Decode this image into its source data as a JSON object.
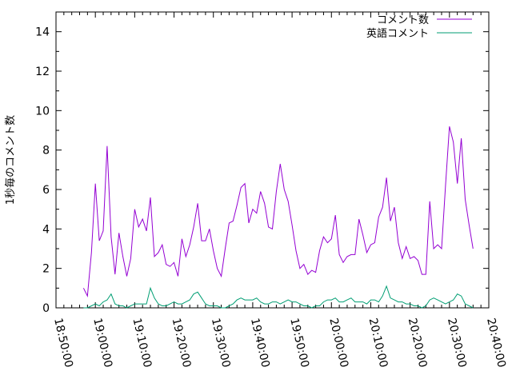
{
  "chart_data": {
    "type": "line",
    "xlabel": "",
    "ylabel": "1秒毎のコメント数",
    "xlim": [
      "18:50:00",
      "20:40:00"
    ],
    "ylim": [
      0,
      15
    ],
    "yticks": [
      0,
      2,
      4,
      6,
      8,
      10,
      12,
      14
    ],
    "xticks": [
      "18:50:00",
      "19:00:00",
      "19:10:00",
      "19:20:00",
      "19:30:00",
      "19:40:00",
      "19:50:00",
      "20:00:00",
      "20:10:00",
      "20:20:00",
      "20:30:00",
      "20:40:00"
    ],
    "grid": false,
    "legend_position": "top-right",
    "x": [
      "18:57:00",
      "18:58:00",
      "18:59:00",
      "19:00:00",
      "19:01:00",
      "19:02:00",
      "19:03:00",
      "19:04:00",
      "19:05:00",
      "19:06:00",
      "19:07:00",
      "19:08:00",
      "19:09:00",
      "19:10:00",
      "19:11:00",
      "19:12:00",
      "19:13:00",
      "19:14:00",
      "19:15:00",
      "19:16:00",
      "19:17:00",
      "19:18:00",
      "19:19:00",
      "19:20:00",
      "19:21:00",
      "19:22:00",
      "19:23:00",
      "19:24:00",
      "19:25:00",
      "19:26:00",
      "19:27:00",
      "19:28:00",
      "19:29:00",
      "19:30:00",
      "19:31:00",
      "19:32:00",
      "19:33:00",
      "19:34:00",
      "19:35:00",
      "19:36:00",
      "19:37:00",
      "19:38:00",
      "19:39:00",
      "19:40:00",
      "19:41:00",
      "19:42:00",
      "19:43:00",
      "19:44:00",
      "19:45:00",
      "19:46:00",
      "19:47:00",
      "19:48:00",
      "19:49:00",
      "19:50:00",
      "19:51:00",
      "19:52:00",
      "19:53:00",
      "19:54:00",
      "19:55:00",
      "19:56:00",
      "19:57:00",
      "19:58:00",
      "19:59:00",
      "20:00:00",
      "20:01:00",
      "20:02:00",
      "20:03:00",
      "20:04:00",
      "20:05:00",
      "20:06:00",
      "20:07:00",
      "20:08:00",
      "20:09:00",
      "20:10:00",
      "20:11:00",
      "20:12:00",
      "20:13:00",
      "20:14:00",
      "20:15:00",
      "20:16:00",
      "20:17:00",
      "20:18:00",
      "20:19:00",
      "20:20:00",
      "20:21:00",
      "20:22:00",
      "20:23:00",
      "20:24:00",
      "20:25:00",
      "20:26:00",
      "20:27:00",
      "20:28:00",
      "20:29:00",
      "20:30:00",
      "20:31:00",
      "20:32:00",
      "20:33:00",
      "20:34:00",
      "20:35:00",
      "20:36:00"
    ],
    "series": [
      {
        "name": "コメント数",
        "color": "#9400d3",
        "values": [
          1.0,
          0.6,
          2.8,
          6.3,
          3.4,
          3.9,
          8.2,
          3.6,
          1.7,
          3.8,
          2.6,
          1.6,
          2.5,
          5.0,
          4.1,
          4.5,
          3.9,
          5.6,
          2.6,
          2.8,
          3.2,
          2.2,
          2.1,
          2.3,
          1.6,
          3.5,
          2.6,
          3.2,
          4.1,
          5.3,
          3.4,
          3.4,
          4.0,
          2.9,
          2.0,
          1.6,
          3.0,
          4.3,
          4.4,
          5.2,
          6.1,
          6.3,
          4.3,
          5.0,
          4.8,
          5.9,
          5.3,
          4.1,
          4.0,
          5.9,
          7.3,
          6.0,
          5.4,
          4.2,
          2.9,
          2.0,
          2.2,
          1.7,
          1.9,
          1.8,
          2.9,
          3.6,
          3.3,
          3.5,
          4.7,
          2.7,
          2.3,
          2.6,
          2.7,
          2.7,
          4.5,
          3.7,
          2.8,
          3.2,
          3.3,
          4.6,
          5.1,
          6.6,
          4.4,
          5.1,
          3.3,
          2.5,
          3.1,
          2.5,
          2.6,
          2.4,
          1.7,
          1.7,
          5.4,
          3.0,
          3.2,
          3.0,
          6.2,
          9.2,
          8.4,
          6.3,
          8.6,
          5.5,
          4.2,
          3.0
        ]
      },
      {
        "name": "英語コメント",
        "color": "#009e73",
        "values": [
          0.0,
          0.0,
          0.1,
          0.2,
          0.1,
          0.3,
          0.4,
          0.7,
          0.2,
          0.1,
          0.1,
          0.0,
          0.1,
          0.2,
          0.2,
          0.2,
          0.2,
          1.0,
          0.5,
          0.2,
          0.1,
          0.1,
          0.2,
          0.3,
          0.2,
          0.2,
          0.3,
          0.4,
          0.7,
          0.8,
          0.5,
          0.2,
          0.1,
          0.1,
          0.1,
          0.0,
          0.0,
          0.1,
          0.2,
          0.4,
          0.5,
          0.4,
          0.4,
          0.4,
          0.5,
          0.3,
          0.2,
          0.2,
          0.3,
          0.3,
          0.2,
          0.3,
          0.4,
          0.3,
          0.3,
          0.2,
          0.1,
          0.1,
          0.0,
          0.1,
          0.1,
          0.3,
          0.4,
          0.4,
          0.5,
          0.3,
          0.3,
          0.4,
          0.5,
          0.3,
          0.3,
          0.3,
          0.2,
          0.4,
          0.4,
          0.3,
          0.6,
          1.1,
          0.5,
          0.4,
          0.3,
          0.3,
          0.2,
          0.2,
          0.1,
          0.1,
          0.0,
          0.1,
          0.4,
          0.5,
          0.4,
          0.3,
          0.2,
          0.3,
          0.4,
          0.7,
          0.6,
          0.2,
          0.1,
          0.0
        ]
      }
    ]
  }
}
